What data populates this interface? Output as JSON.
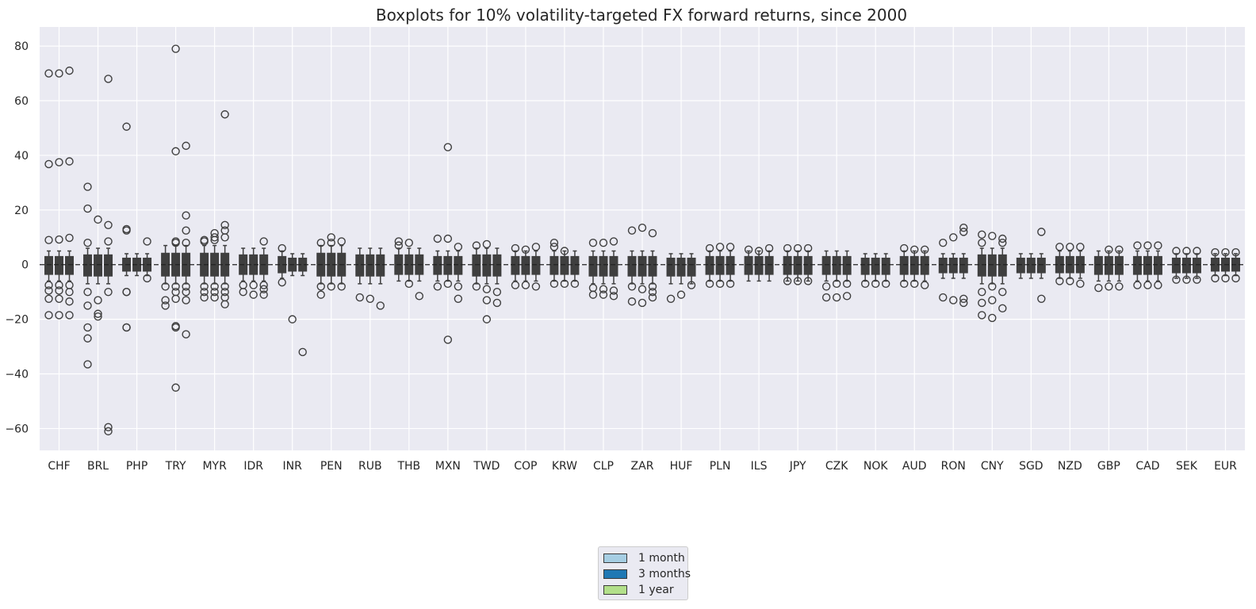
{
  "chart_data": {
    "type": "box",
    "title": "Boxplots for 10% volatility-targeted FX forward returns, since 2000",
    "xlabel": "",
    "ylabel": "",
    "ylim": [
      -68,
      87
    ],
    "yticks": [
      -60,
      -40,
      -20,
      0,
      20,
      40,
      60,
      80
    ],
    "reference_line": 0,
    "grid": true,
    "legend_position": "bottom-center",
    "categories": [
      "CHF",
      "BRL",
      "PHP",
      "TRY",
      "MYR",
      "IDR",
      "INR",
      "PEN",
      "RUB",
      "THB",
      "MXN",
      "TWD",
      "COP",
      "KRW",
      "CLP",
      "ZAR",
      "HUF",
      "PLN",
      "ILS",
      "JPY",
      "CZK",
      "NOK",
      "AUD",
      "RON",
      "CNY",
      "SGD",
      "NZD",
      "GBP",
      "CAD",
      "SEK",
      "EUR"
    ],
    "series": [
      {
        "name": "1 month",
        "color": "#a6cee3"
      },
      {
        "name": "3 months",
        "color": "#1f78b4"
      },
      {
        "name": "1 year",
        "color": "#b2df8a"
      }
    ],
    "groups": [
      {
        "whisker": [
          [
            -6,
            5
          ],
          [
            -6,
            5
          ],
          [
            -6,
            5
          ]
        ],
        "outliers": [
          [
            70,
            36.8,
            9,
            -7.5,
            -9.5,
            -12.5,
            -18.5
          ],
          [
            70,
            37.5,
            9.2,
            -7.5,
            -9.5,
            -12.5,
            -18.5
          ],
          [
            71,
            37.8,
            9.8,
            -7.5,
            -10,
            -13.5,
            -18.5
          ]
        ]
      },
      {
        "whisker": [
          [
            -7,
            6
          ],
          [
            -7,
            6
          ],
          [
            -7,
            6
          ]
        ],
        "outliers": [
          [
            28.5,
            20.5,
            8,
            -10,
            -15,
            -23,
            -27,
            -36.5
          ],
          [
            16.5,
            -13,
            -18,
            -19
          ],
          [
            68,
            14.5,
            8.5,
            -10,
            -59.5,
            -61
          ]
        ]
      },
      {
        "whisker": [
          [
            -4,
            4
          ],
          [
            -4,
            4
          ],
          [
            -4,
            4
          ]
        ],
        "outliers": [
          [
            50.5,
            13,
            12.5,
            -10,
            -10,
            -23,
            -23
          ],
          [],
          [
            8.5,
            -5
          ]
        ]
      },
      {
        "whisker": [
          [
            -7,
            7
          ],
          [
            -7,
            7
          ],
          [
            -7,
            7
          ]
        ],
        "outliers": [
          [
            -8,
            -13,
            -15
          ],
          [
            79,
            41.5,
            8.5,
            8,
            -8,
            -10,
            -12.5,
            -22.5,
            -23,
            -45
          ],
          [
            43.5,
            18,
            12.5,
            8,
            -8,
            -10,
            -13,
            -25.5
          ]
        ]
      },
      {
        "whisker": [
          [
            -7,
            7
          ],
          [
            -7,
            7
          ],
          [
            -7,
            7
          ]
        ],
        "outliers": [
          [
            9,
            8.5,
            -8,
            -10,
            -12
          ],
          [
            11.5,
            10,
            9,
            -8,
            -10,
            -12
          ],
          [
            55,
            14.5,
            12.5,
            10,
            -8,
            -10,
            -12,
            -14.5
          ]
        ]
      },
      {
        "whisker": [
          [
            -6,
            6
          ],
          [
            -6,
            6
          ],
          [
            -6,
            6
          ]
        ],
        "outliers": [
          [
            -7.5,
            -10
          ],
          [
            -7.5,
            -11
          ],
          [
            8.5,
            -7.5,
            -9,
            -11
          ]
        ]
      },
      {
        "whisker": [
          [
            -5,
            5
          ],
          [
            -4,
            4
          ],
          [
            -4,
            4
          ]
        ],
        "outliers": [
          [
            6,
            -6.5
          ],
          [
            -20
          ],
          [
            -32
          ]
        ]
      },
      {
        "whisker": [
          [
            -7,
            7
          ],
          [
            -7,
            7
          ],
          [
            -7,
            7
          ]
        ],
        "outliers": [
          [
            8,
            -8,
            -11
          ],
          [
            10,
            8,
            -8
          ],
          [
            8.5,
            -8
          ]
        ]
      },
      {
        "whisker": [
          [
            -7,
            6
          ],
          [
            -7,
            6
          ],
          [
            -7,
            6
          ]
        ],
        "outliers": [
          [
            -12
          ],
          [
            -12.5
          ],
          [
            -15
          ]
        ]
      },
      {
        "whisker": [
          [
            -6,
            6
          ],
          [
            -6,
            6
          ],
          [
            -6,
            6
          ]
        ],
        "outliers": [
          [
            8.5,
            7
          ],
          [
            8,
            -7
          ],
          [
            -11.5
          ]
        ]
      },
      {
        "whisker": [
          [
            -6,
            5
          ],
          [
            -6,
            5
          ],
          [
            -6,
            5
          ]
        ],
        "outliers": [
          [
            9.5,
            -8
          ],
          [
            43,
            9.5,
            -7,
            -27.5
          ],
          [
            6.5,
            -8,
            -12.5
          ]
        ]
      },
      {
        "whisker": [
          [
            -7,
            6
          ],
          [
            -7,
            6
          ],
          [
            -7,
            6
          ]
        ],
        "outliers": [
          [
            7,
            -8
          ],
          [
            7.5,
            -9,
            -13,
            -20
          ],
          [
            -10,
            -14
          ]
        ]
      },
      {
        "whisker": [
          [
            -6,
            5
          ],
          [
            -6,
            5
          ],
          [
            -6,
            5
          ]
        ],
        "outliers": [
          [
            6,
            -7.5
          ],
          [
            5.5,
            -7.5
          ],
          [
            6.5,
            -8
          ]
        ]
      },
      {
        "whisker": [
          [
            -6,
            5
          ],
          [
            -6,
            5
          ],
          [
            -6,
            5
          ]
        ],
        "outliers": [
          [
            8,
            6.5,
            -7
          ],
          [
            5,
            -7
          ],
          [
            -7
          ]
        ]
      },
      {
        "whisker": [
          [
            -7,
            5
          ],
          [
            -7,
            5
          ],
          [
            -7,
            5
          ]
        ],
        "outliers": [
          [
            8,
            -8.5,
            -11
          ],
          [
            8,
            -9,
            -11
          ],
          [
            8.5,
            -9.5,
            -11.5
          ]
        ]
      },
      {
        "whisker": [
          [
            -7,
            5
          ],
          [
            -7,
            5
          ],
          [
            -7,
            5
          ]
        ],
        "outliers": [
          [
            12.5,
            -8,
            -13.5
          ],
          [
            13.5,
            -9,
            -14
          ],
          [
            11.5,
            -8,
            -10,
            -12
          ]
        ]
      },
      {
        "whisker": [
          [
            -7,
            4
          ],
          [
            -7,
            4
          ],
          [
            -7,
            4
          ]
        ],
        "outliers": [
          [
            -12.5
          ],
          [
            -11
          ],
          [
            -7.5
          ]
        ]
      },
      {
        "whisker": [
          [
            -6,
            5
          ],
          [
            -6,
            5
          ],
          [
            -6,
            5
          ]
        ],
        "outliers": [
          [
            6,
            -7
          ],
          [
            6.5,
            -7
          ],
          [
            6.5,
            -7
          ]
        ]
      },
      {
        "whisker": [
          [
            -6,
            5
          ],
          [
            -6,
            5
          ],
          [
            -6,
            5
          ]
        ],
        "outliers": [
          [
            5.5
          ],
          [
            5
          ],
          [
            6
          ]
        ]
      },
      {
        "whisker": [
          [
            -6,
            5
          ],
          [
            -6,
            5
          ],
          [
            -6,
            5
          ]
        ],
        "outliers": [
          [
            6,
            -6
          ],
          [
            6,
            -6
          ],
          [
            6,
            -6
          ]
        ]
      },
      {
        "whisker": [
          [
            -6,
            5
          ],
          [
            -6,
            5
          ],
          [
            -6,
            5
          ]
        ],
        "outliers": [
          [
            -8,
            -12
          ],
          [
            -7,
            -12
          ],
          [
            -7,
            -11.5
          ]
        ]
      },
      {
        "whisker": [
          [
            -6,
            4
          ],
          [
            -6,
            4
          ],
          [
            -6,
            4
          ]
        ],
        "outliers": [
          [
            -7
          ],
          [
            -7
          ],
          [
            -7
          ]
        ]
      },
      {
        "whisker": [
          [
            -6,
            5
          ],
          [
            -6,
            5
          ],
          [
            -6,
            5
          ]
        ],
        "outliers": [
          [
            6,
            -7
          ],
          [
            5.5,
            -7
          ],
          [
            5.5,
            -7.5
          ]
        ]
      },
      {
        "whisker": [
          [
            -5,
            4
          ],
          [
            -5,
            4
          ],
          [
            -5,
            4
          ]
        ],
        "outliers": [
          [
            8,
            -12
          ],
          [
            10,
            -13
          ],
          [
            13.5,
            12,
            -12.5,
            -14
          ]
        ]
      },
      {
        "whisker": [
          [
            -7,
            6
          ],
          [
            -7,
            6
          ],
          [
            -7,
            6
          ]
        ],
        "outliers": [
          [
            11,
            8,
            -10,
            -14,
            -18.5
          ],
          [
            10.5,
            -8,
            -13,
            -19.5
          ],
          [
            9.5,
            8,
            -10,
            -16
          ]
        ]
      },
      {
        "whisker": [
          [
            -5,
            4
          ],
          [
            -5,
            4
          ],
          [
            -5,
            4
          ]
        ],
        "outliers": [
          [],
          [],
          [
            12,
            -12.5
          ]
        ]
      },
      {
        "whisker": [
          [
            -5,
            5
          ],
          [
            -5,
            5
          ],
          [
            -5,
            5
          ]
        ],
        "outliers": [
          [
            6.5,
            -6
          ],
          [
            6.5,
            -6
          ],
          [
            6.5,
            -7
          ]
        ]
      },
      {
        "whisker": [
          [
            -6,
            5
          ],
          [
            -6,
            5
          ],
          [
            -6,
            5
          ]
        ],
        "outliers": [
          [
            -8.5
          ],
          [
            5.5,
            -8
          ],
          [
            5.5,
            -8
          ]
        ]
      },
      {
        "whisker": [
          [
            -6,
            5
          ],
          [
            -6,
            5
          ],
          [
            -6,
            5
          ]
        ],
        "outliers": [
          [
            7,
            -7.5
          ],
          [
            7,
            -7.5
          ],
          [
            7,
            -7.5
          ]
        ]
      },
      {
        "whisker": [
          [
            -5,
            4
          ],
          [
            -5,
            4
          ],
          [
            -5,
            4
          ]
        ],
        "outliers": [
          [
            5,
            -5.5
          ],
          [
            5,
            -5.5
          ],
          [
            5,
            -5.5
          ]
        ]
      },
      {
        "whisker": [
          [
            -4,
            4
          ],
          [
            -4,
            4
          ],
          [
            -4,
            4
          ]
        ],
        "outliers": [
          [
            4.5,
            -5
          ],
          [
            4.5,
            -5
          ],
          [
            4.5,
            -5
          ]
        ]
      }
    ]
  }
}
